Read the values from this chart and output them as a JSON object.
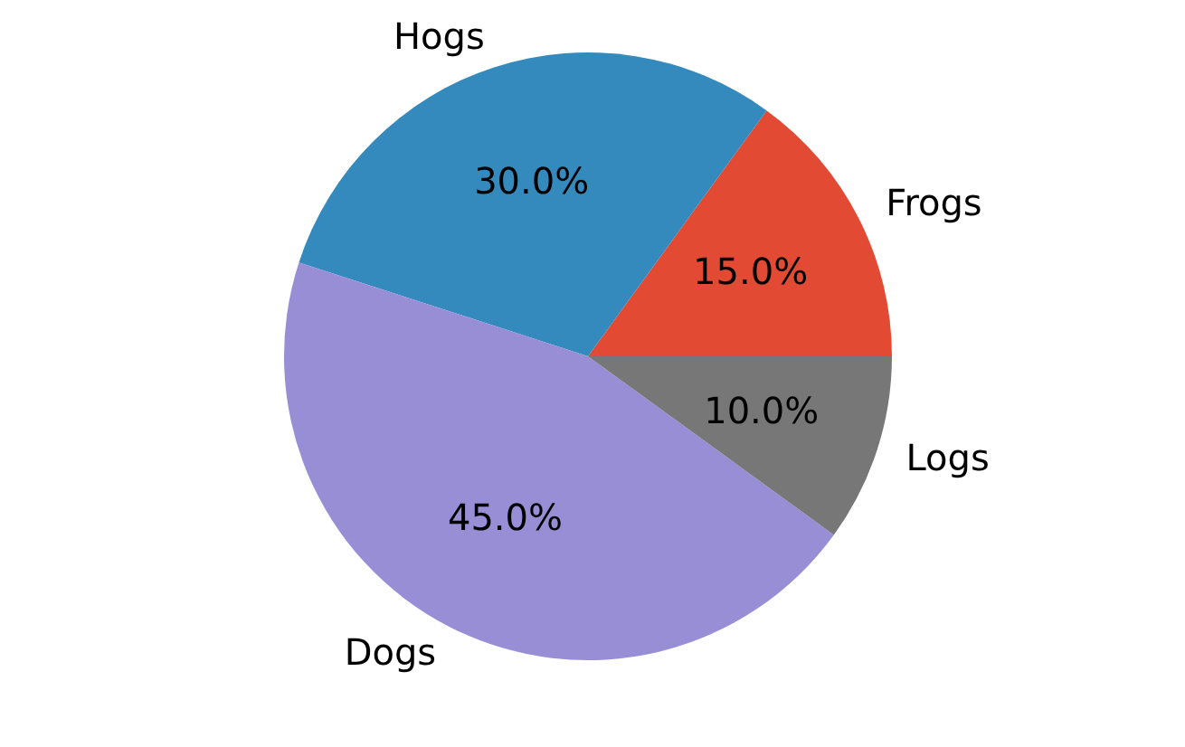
{
  "chart_data": {
    "type": "pie",
    "categories": [
      "Frogs",
      "Hogs",
      "Dogs",
      "Logs"
    ],
    "values": [
      15,
      30,
      45,
      10
    ],
    "colors": [
      "#e24a33",
      "#348abd",
      "#988ed5",
      "#777777"
    ],
    "value_labels": [
      "15.0%",
      "30.0%",
      "45.0%",
      "10.0%"
    ]
  }
}
